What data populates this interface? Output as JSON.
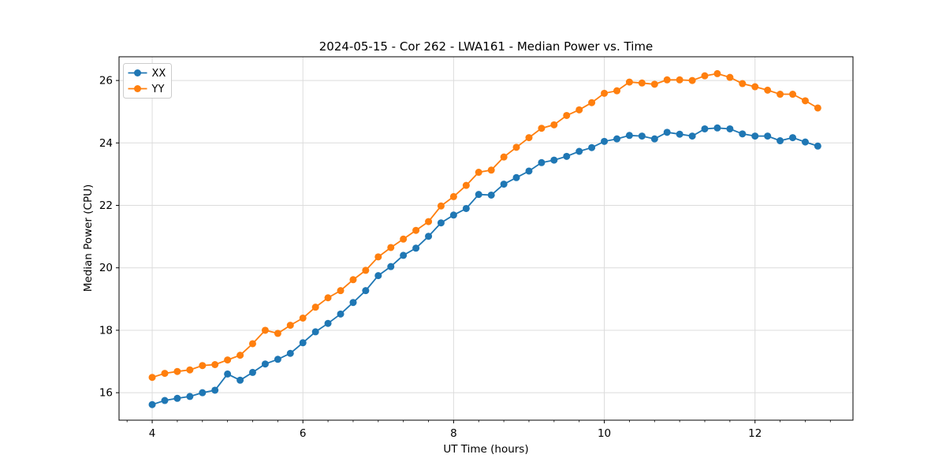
{
  "chart_data": {
    "type": "line",
    "title": "2024-05-15 - Cor 262 - LWA161 - Median Power vs. Time",
    "xlabel": "UT Time (hours)",
    "ylabel": "Median Power (CPU)",
    "xlim": [
      3.56,
      13.3
    ],
    "ylim": [
      15.12,
      26.76
    ],
    "xticks": [
      4,
      6,
      8,
      10,
      12
    ],
    "yticks": [
      16,
      18,
      20,
      22,
      24,
      26
    ],
    "x_minor_step": 0.33333,
    "grid": true,
    "grid_color": "#dcdcdc",
    "legend_position": "upper-left",
    "x": [
      4.0,
      4.167,
      4.333,
      4.5,
      4.667,
      4.833,
      5.0,
      5.167,
      5.333,
      5.5,
      5.667,
      5.833,
      6.0,
      6.167,
      6.333,
      6.5,
      6.667,
      6.833,
      7.0,
      7.167,
      7.333,
      7.5,
      7.667,
      7.833,
      8.0,
      8.167,
      8.333,
      8.5,
      8.667,
      8.833,
      9.0,
      9.167,
      9.333,
      9.5,
      9.667,
      9.833,
      10.0,
      10.167,
      10.333,
      10.5,
      10.667,
      10.833,
      11.0,
      11.167,
      11.333,
      11.5,
      11.667,
      11.833,
      12.0,
      12.167,
      12.333,
      12.5,
      12.667,
      12.833
    ],
    "series": [
      {
        "name": "XX",
        "color": "#1f77b4",
        "values": [
          15.62,
          15.75,
          15.82,
          15.88,
          16.0,
          16.08,
          16.6,
          16.4,
          16.65,
          16.92,
          17.07,
          17.26,
          17.6,
          17.95,
          18.22,
          18.52,
          18.89,
          19.27,
          19.75,
          20.04,
          20.4,
          20.63,
          21.01,
          21.44,
          21.69,
          21.9,
          22.35,
          22.33,
          22.68,
          22.89,
          23.1,
          23.37,
          23.45,
          23.57,
          23.73,
          23.85,
          24.05,
          24.13,
          24.24,
          24.22,
          24.13,
          24.34,
          24.28,
          24.22,
          24.45,
          24.48,
          24.45,
          24.29,
          24.22,
          24.22,
          24.07,
          24.17,
          24.03,
          23.9
        ]
      },
      {
        "name": "YY",
        "color": "#ff7f0e",
        "values": [
          16.49,
          16.62,
          16.68,
          16.73,
          16.87,
          16.9,
          17.05,
          17.2,
          17.57,
          18.0,
          17.9,
          18.16,
          18.39,
          18.74,
          19.04,
          19.27,
          19.62,
          19.92,
          20.35,
          20.65,
          20.92,
          21.2,
          21.48,
          21.98,
          22.28,
          22.64,
          23.06,
          23.13,
          23.55,
          23.86,
          24.17,
          24.47,
          24.58,
          24.88,
          25.06,
          25.29,
          25.59,
          25.67,
          25.95,
          25.92,
          25.88,
          26.02,
          26.02,
          26.0,
          26.15,
          26.22,
          26.1,
          25.9,
          25.8,
          25.69,
          25.56,
          25.56,
          25.35,
          25.12
        ]
      }
    ]
  }
}
